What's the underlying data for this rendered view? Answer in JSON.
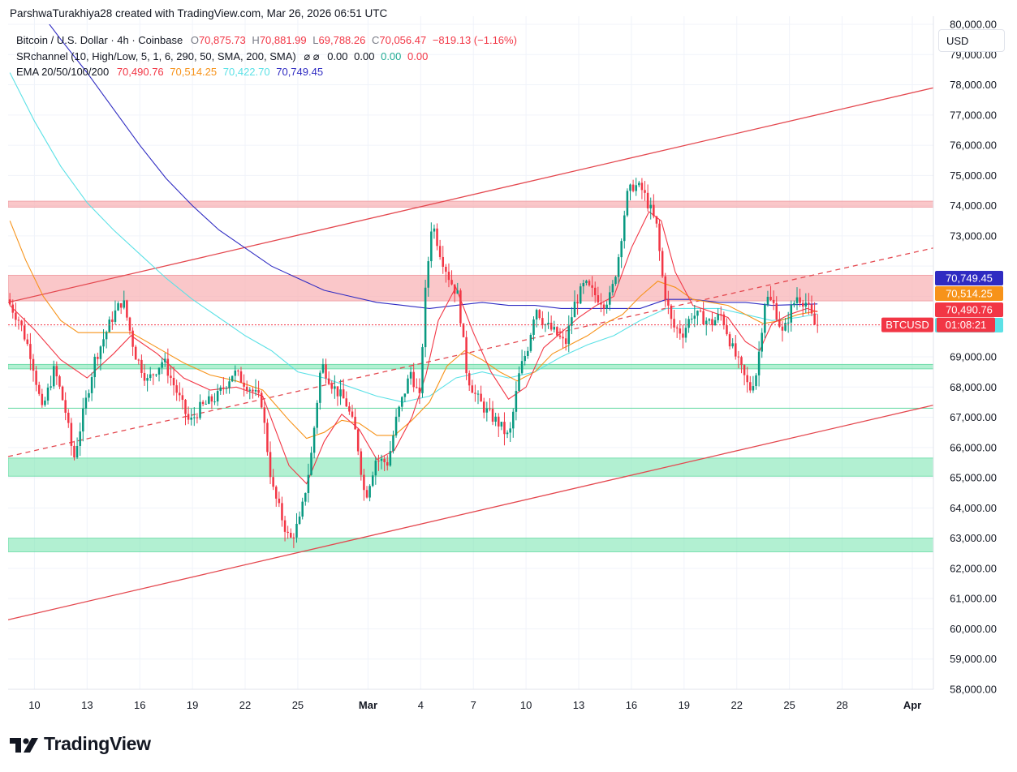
{
  "credit": "ParshwaTurakhiya28 created with TradingView.com, Mar 26, 2026 06:51 UTC",
  "legend": {
    "symbol": "Bitcoin / U.S. Dollar · 4h · Coinbase",
    "o_label": "O",
    "o_value": "70,875.73",
    "h_label": "H",
    "h_value": "70,881.99",
    "l_label": "L",
    "l_value": "69,788.26",
    "c_label": "C",
    "c_value": "70,056.47",
    "change": "−819.13 (−1.16%)",
    "sr_label": "SRchannel (10, High/Low, 5, 1, 6, 290, 50, SMA, 200, SMA)",
    "sr_icons": "⌀ ⌀",
    "sr_v1": "0.00",
    "sr_v2": "0.00",
    "sr_v3": "0.00",
    "sr_v4": "0.00",
    "ema_label": "EMA 20/50/100/200",
    "ema20": "70,490.76",
    "ema50": "70,514.25",
    "ema100": "70,422.70",
    "ema200": "70,749.45"
  },
  "currency_button": "USD",
  "brand": "TradingView",
  "colors": {
    "up": "#089981",
    "down": "#f23645",
    "ema20": "#f23645",
    "ema50": "#f7931a",
    "ema100": "#5ce1e6",
    "ema200": "#2f2bc2",
    "resistance_zone": "#f8b4b7",
    "support_zone": "#7ee6b4",
    "channel": "#e4484f"
  },
  "chart_data": {
    "type": "candlestick",
    "timeframe": "4h",
    "y_ticks": [
      58000,
      59000,
      60000,
      61000,
      62000,
      63000,
      64000,
      65000,
      66000,
      67000,
      68000,
      69000,
      73000,
      74000,
      75000,
      76000,
      77000,
      78000,
      79000,
      80000
    ],
    "y_tick_labels": [
      "58,000.00",
      "59,000.00",
      "60,000.00",
      "61,000.00",
      "62,000.00",
      "63,000.00",
      "64,000.00",
      "65,000.00",
      "66,000.00",
      "67,000.00",
      "68,000.00",
      "69,000.00",
      "73,000.00",
      "74,000.00",
      "75,000.00",
      "76,000.00",
      "77,000.00",
      "78,000.00",
      "79,000.00",
      "80,000.00"
    ],
    "ylim": [
      58000,
      80000
    ],
    "x_tick_labels": [
      {
        "label": "10",
        "day": 10
      },
      {
        "label": "13",
        "day": 13
      },
      {
        "label": "16",
        "day": 16
      },
      {
        "label": "19",
        "day": 19
      },
      {
        "label": "22",
        "day": 22
      },
      {
        "label": "25",
        "day": 25
      },
      {
        "label": "Mar",
        "day": 29,
        "bold": true
      },
      {
        "label": "4",
        "day": 32
      },
      {
        "label": "7",
        "day": 35
      },
      {
        "label": "10",
        "day": 38
      },
      {
        "label": "13",
        "day": 41
      },
      {
        "label": "16",
        "day": 44
      },
      {
        "label": "19",
        "day": 47
      },
      {
        "label": "22",
        "day": 50
      },
      {
        "label": "25",
        "day": 53
      },
      {
        "label": "28",
        "day": 56
      },
      {
        "label": "Apr",
        "day": 60,
        "bold": true
      }
    ],
    "xlim_days": [
      8.5,
      61.2
    ],
    "price_labels": [
      {
        "text": "70,749.45",
        "value": 70749.45,
        "color": "#2f2bc2"
      },
      {
        "text": "70,514.25",
        "value": 70514.25,
        "color": "#f7931a"
      },
      {
        "text": "70,490.76",
        "value": 70490.76,
        "color": "#f23645"
      },
      {
        "text": "70,422.70",
        "value": 70422.7,
        "color": "#5ce1e6",
        "text_color": "#131722"
      }
    ],
    "last_price": {
      "symbol": "BTCUSD",
      "countdown": "01:08:21",
      "value": 70056.47,
      "color": "#f23645"
    },
    "resistance_zones": [
      [
        73950,
        74150
      ],
      [
        70850,
        71700
      ]
    ],
    "support_zones": [
      [
        68600,
        68750
      ],
      [
        65050,
        65650
      ],
      [
        62550,
        63000
      ]
    ],
    "support_lines": [
      67300
    ],
    "channel_upper": [
      [
        8.5,
        70800
      ],
      [
        61.2,
        77900
      ]
    ],
    "channel_lower": [
      [
        8.5,
        60300
      ],
      [
        61.2,
        67400
      ]
    ],
    "channel_mid": [
      [
        8.5,
        65700
      ],
      [
        61.2,
        72600
      ]
    ],
    "price_path": [
      [
        8.6,
        70900
      ],
      [
        9.3,
        70200
      ],
      [
        10.0,
        69000
      ],
      [
        10.6,
        67200
      ],
      [
        11.3,
        68600
      ],
      [
        11.9,
        67300
      ],
      [
        12.4,
        65600
      ],
      [
        12.9,
        67000
      ],
      [
        13.6,
        68900
      ],
      [
        14.6,
        70300
      ],
      [
        15.2,
        70900
      ],
      [
        15.9,
        69100
      ],
      [
        16.6,
        68200
      ],
      [
        17.5,
        68900
      ],
      [
        18.3,
        67800
      ],
      [
        19.0,
        66800
      ],
      [
        19.6,
        67300
      ],
      [
        20.6,
        67700
      ],
      [
        21.5,
        68500
      ],
      [
        22.4,
        68000
      ],
      [
        23.1,
        67500
      ],
      [
        23.7,
        64700
      ],
      [
        24.3,
        63600
      ],
      [
        24.7,
        62900
      ],
      [
        25.3,
        63600
      ],
      [
        25.9,
        65600
      ],
      [
        26.5,
        68800
      ],
      [
        27.2,
        68000
      ],
      [
        27.9,
        67500
      ],
      [
        28.5,
        66400
      ],
      [
        29.0,
        64300
      ],
      [
        29.6,
        65600
      ],
      [
        30.3,
        65500
      ],
      [
        30.8,
        67000
      ],
      [
        31.6,
        68500
      ],
      [
        32.1,
        67600
      ],
      [
        32.4,
        70900
      ],
      [
        32.8,
        73500
      ],
      [
        33.3,
        72400
      ],
      [
        33.8,
        71600
      ],
      [
        34.3,
        71000
      ],
      [
        34.8,
        68400
      ],
      [
        35.3,
        67700
      ],
      [
        35.9,
        67200
      ],
      [
        36.6,
        66800
      ],
      [
        37.2,
        66300
      ],
      [
        37.8,
        68500
      ],
      [
        38.3,
        69400
      ],
      [
        38.7,
        70700
      ],
      [
        39.2,
        70100
      ],
      [
        39.8,
        69800
      ],
      [
        40.4,
        69400
      ],
      [
        40.9,
        70700
      ],
      [
        41.5,
        71400
      ],
      [
        42.0,
        71100
      ],
      [
        42.6,
        70800
      ],
      [
        43.0,
        71000
      ],
      [
        43.4,
        72200
      ],
      [
        43.9,
        74300
      ],
      [
        44.3,
        74700
      ],
      [
        44.8,
        74500
      ],
      [
        45.3,
        73800
      ],
      [
        45.6,
        73300
      ],
      [
        46.0,
        71300
      ],
      [
        46.5,
        70000
      ],
      [
        47.1,
        69800
      ],
      [
        47.6,
        70400
      ],
      [
        48.2,
        70300
      ],
      [
        48.7,
        70100
      ],
      [
        49.3,
        70400
      ],
      [
        49.9,
        69300
      ],
      [
        50.4,
        68600
      ],
      [
        50.9,
        67900
      ],
      [
        51.3,
        68500
      ],
      [
        51.8,
        71000
      ],
      [
        52.3,
        70700
      ],
      [
        52.8,
        69700
      ],
      [
        53.2,
        70500
      ],
      [
        53.6,
        71000
      ],
      [
        54.1,
        70800
      ],
      [
        54.6,
        70056
      ]
    ],
    "ema20_path": [
      [
        8.6,
        70700
      ],
      [
        10.0,
        69900
      ],
      [
        11.5,
        68900
      ],
      [
        13.0,
        68300
      ],
      [
        14.5,
        69100
      ],
      [
        15.5,
        69700
      ],
      [
        17.0,
        69100
      ],
      [
        18.5,
        68300
      ],
      [
        20.0,
        67900
      ],
      [
        21.5,
        68000
      ],
      [
        23.0,
        67700
      ],
      [
        24.5,
        65400
      ],
      [
        25.5,
        64800
      ],
      [
        26.5,
        66200
      ],
      [
        27.5,
        67100
      ],
      [
        28.5,
        66600
      ],
      [
        29.5,
        65600
      ],
      [
        30.5,
        65900
      ],
      [
        31.5,
        67000
      ],
      [
        32.3,
        68400
      ],
      [
        33.0,
        70200
      ],
      [
        34.0,
        71300
      ],
      [
        35.0,
        69800
      ],
      [
        36.0,
        68500
      ],
      [
        37.0,
        67600
      ],
      [
        38.0,
        68000
      ],
      [
        39.0,
        69300
      ],
      [
        40.0,
        69800
      ],
      [
        41.0,
        70300
      ],
      [
        42.0,
        70700
      ],
      [
        43.0,
        71000
      ],
      [
        44.0,
        72600
      ],
      [
        45.0,
        73800
      ],
      [
        45.7,
        73500
      ],
      [
        46.5,
        71800
      ],
      [
        47.5,
        70700
      ],
      [
        48.5,
        70500
      ],
      [
        49.5,
        70300
      ],
      [
        50.5,
        69500
      ],
      [
        51.3,
        69200
      ],
      [
        52.0,
        70100
      ],
      [
        53.0,
        70400
      ],
      [
        54.0,
        70600
      ],
      [
        54.6,
        70490
      ]
    ],
    "ema50_path": [
      [
        8.6,
        73500
      ],
      [
        9.5,
        72200
      ],
      [
        10.5,
        71000
      ],
      [
        11.5,
        70200
      ],
      [
        12.5,
        69800
      ],
      [
        14.0,
        69800
      ],
      [
        15.5,
        69800
      ],
      [
        17.0,
        69300
      ],
      [
        18.5,
        68800
      ],
      [
        20.0,
        68400
      ],
      [
        21.5,
        68200
      ],
      [
        23.0,
        67900
      ],
      [
        24.5,
        66900
      ],
      [
        25.5,
        66300
      ],
      [
        26.5,
        66500
      ],
      [
        27.5,
        66900
      ],
      [
        28.5,
        66800
      ],
      [
        29.5,
        66400
      ],
      [
        30.5,
        66400
      ],
      [
        31.5,
        66900
      ],
      [
        32.5,
        67500
      ],
      [
        33.5,
        68700
      ],
      [
        34.5,
        69200
      ],
      [
        35.5,
        68900
      ],
      [
        36.5,
        68500
      ],
      [
        37.5,
        68200
      ],
      [
        38.5,
        68500
      ],
      [
        39.5,
        69100
      ],
      [
        40.5,
        69400
      ],
      [
        41.5,
        69700
      ],
      [
        42.5,
        70100
      ],
      [
        43.5,
        70400
      ],
      [
        44.5,
        71000
      ],
      [
        45.5,
        71500
      ],
      [
        46.5,
        71300
      ],
      [
        47.5,
        70900
      ],
      [
        48.5,
        70800
      ],
      [
        49.5,
        70700
      ],
      [
        50.5,
        70400
      ],
      [
        51.5,
        70100
      ],
      [
        52.5,
        70200
      ],
      [
        53.5,
        70400
      ],
      [
        54.6,
        70514
      ]
    ],
    "ema100_path": [
      [
        8.6,
        78400
      ],
      [
        10.0,
        76800
      ],
      [
        11.5,
        75300
      ],
      [
        13.0,
        74100
      ],
      [
        14.5,
        73200
      ],
      [
        16.0,
        72400
      ],
      [
        17.5,
        71600
      ],
      [
        19.0,
        70900
      ],
      [
        20.5,
        70300
      ],
      [
        22.0,
        69700
      ],
      [
        23.5,
        69200
      ],
      [
        25.0,
        68500
      ],
      [
        26.5,
        68300
      ],
      [
        28.0,
        68000
      ],
      [
        29.5,
        67700
      ],
      [
        31.0,
        67500
      ],
      [
        32.5,
        67700
      ],
      [
        34.0,
        68300
      ],
      [
        35.5,
        68500
      ],
      [
        37.0,
        68300
      ],
      [
        38.5,
        68500
      ],
      [
        40.0,
        69000
      ],
      [
        41.5,
        69400
      ],
      [
        43.0,
        69700
      ],
      [
        44.5,
        70200
      ],
      [
        46.0,
        70600
      ],
      [
        47.5,
        70600
      ],
      [
        49.0,
        70600
      ],
      [
        50.5,
        70400
      ],
      [
        52.0,
        70200
      ],
      [
        53.5,
        70300
      ],
      [
        54.6,
        70422
      ]
    ],
    "ema200_path": [
      [
        10.2,
        80500
      ],
      [
        11.5,
        79500
      ],
      [
        13.0,
        78400
      ],
      [
        14.5,
        77200
      ],
      [
        16.0,
        76000
      ],
      [
        17.5,
        74900
      ],
      [
        19.0,
        74000
      ],
      [
        20.5,
        73200
      ],
      [
        22.0,
        72600
      ],
      [
        23.5,
        72000
      ],
      [
        25.0,
        71600
      ],
      [
        26.5,
        71200
      ],
      [
        28.0,
        71000
      ],
      [
        29.5,
        70800
      ],
      [
        31.0,
        70700
      ],
      [
        32.5,
        70600
      ],
      [
        34.0,
        70700
      ],
      [
        35.5,
        70800
      ],
      [
        37.0,
        70700
      ],
      [
        38.5,
        70700
      ],
      [
        40.0,
        70600
      ],
      [
        41.5,
        70600
      ],
      [
        43.0,
        70600
      ],
      [
        44.5,
        70600
      ],
      [
        46.0,
        70900
      ],
      [
        47.5,
        70900
      ],
      [
        49.0,
        70800
      ],
      [
        50.5,
        70800
      ],
      [
        52.0,
        70700
      ],
      [
        54.6,
        70749
      ]
    ]
  }
}
